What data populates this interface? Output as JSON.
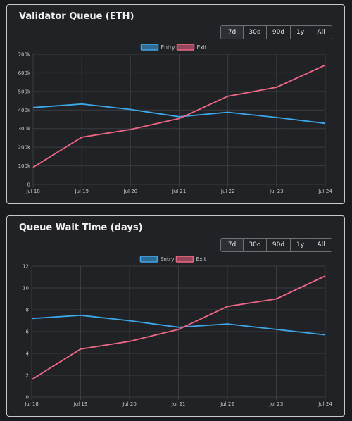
{
  "colors": {
    "entry": "#3ea8ea",
    "exit": "#f06685",
    "grid": "#3a3c40"
  },
  "range_options": [
    "7d",
    "30d",
    "90d",
    "1y",
    "All"
  ],
  "panels": [
    {
      "title": "Validator Queue (ETH)",
      "active_range": "7d"
    },
    {
      "title": "Queue Wait Time (days)",
      "active_range": "7d"
    }
  ],
  "chart_data": [
    {
      "type": "line",
      "title": "Validator Queue (ETH)",
      "categories": [
        "Jul 18",
        "Jul 19",
        "Jul 20",
        "Jul 21",
        "Jul 22",
        "Jul 23",
        "Jul 24"
      ],
      "series": [
        {
          "name": "Entry",
          "values": [
            413000,
            432000,
            403000,
            364000,
            388000,
            360000,
            328000
          ]
        },
        {
          "name": "Exit",
          "values": [
            92000,
            254000,
            295000,
            354000,
            474000,
            522000,
            641000
          ]
        }
      ],
      "ylim": [
        0,
        700000
      ],
      "yticks": [
        0,
        100000,
        200000,
        300000,
        400000,
        500000,
        600000,
        700000
      ],
      "ytick_labels": [
        "0",
        "100k",
        "200k",
        "300k",
        "400k",
        "500k",
        "600k",
        "700k"
      ],
      "legend": "top-center",
      "grid": true
    },
    {
      "type": "line",
      "title": "Queue Wait Time (days)",
      "categories": [
        "Jul 18",
        "Jul 19",
        "Jul 20",
        "Jul 21",
        "Jul 22",
        "Jul 23",
        "Jul 24"
      ],
      "series": [
        {
          "name": "Entry",
          "values": [
            7.2,
            7.5,
            7.0,
            6.4,
            6.7,
            6.2,
            5.7
          ]
        },
        {
          "name": "Exit",
          "values": [
            1.6,
            4.4,
            5.1,
            6.2,
            8.3,
            9.0,
            11.1
          ]
        }
      ],
      "ylim": [
        0,
        12
      ],
      "yticks": [
        0,
        2,
        4,
        6,
        8,
        10,
        12
      ],
      "ytick_labels": [
        "0",
        "2",
        "4",
        "6",
        "8",
        "10",
        "12"
      ],
      "legend": "top-center",
      "grid": true
    }
  ]
}
